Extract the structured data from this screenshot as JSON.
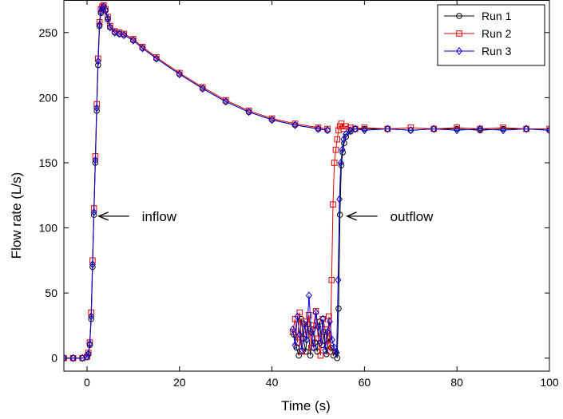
{
  "colors": {
    "run1": "#000000",
    "run2": "#e00000",
    "run3": "#0000d8",
    "axis": "#000000",
    "background": "#ffffff"
  },
  "chart_data": {
    "type": "line",
    "xlabel": "Time (s)",
    "ylabel": "Flow rate (L/s)",
    "xlim": [
      -5,
      100
    ],
    "ylim": [
      -10,
      275
    ],
    "xticks": [
      0,
      20,
      40,
      60,
      80,
      100
    ],
    "yticks": [
      0,
      50,
      100,
      150,
      200,
      250
    ],
    "grid": false,
    "legend_position": "top-right",
    "annotations": [
      {
        "text": "inflow",
        "x": 1.5,
        "y": 109
      },
      {
        "text": "outflow",
        "x": 55.2,
        "y": 109
      }
    ],
    "series": [
      {
        "name": "Run 1",
        "marker": "circle",
        "color_key": "run1",
        "inflow": {
          "x": [
            -5,
            -3,
            -1,
            0,
            0.3,
            0.6,
            0.9,
            1.2,
            1.5,
            1.8,
            2.1,
            2.4,
            2.7,
            3.0,
            3.3,
            3.6,
            4.0,
            4.5,
            5,
            6,
            7,
            8,
            10,
            12,
            15,
            20,
            25,
            30,
            35,
            40,
            45,
            50,
            52
          ],
          "y": [
            0,
            0,
            0,
            1,
            3,
            10,
            30,
            70,
            110,
            150,
            190,
            225,
            255,
            265,
            268,
            270,
            267,
            260,
            254,
            250,
            249,
            248,
            244,
            238,
            230,
            218,
            207,
            197,
            189,
            183,
            179,
            176,
            175
          ]
        },
        "outflow": {
          "x": [
            44.8,
            45.3,
            45.8,
            46.3,
            46.8,
            47.3,
            47.8,
            48.3,
            48.8,
            49.3,
            49.8,
            50.3,
            50.8,
            51.3,
            51.8,
            52.3,
            52.8,
            53.3,
            53.8,
            54.1,
            54.4,
            54.7,
            55.0,
            55.3,
            55.6,
            56.0,
            57,
            58,
            60,
            65,
            70,
            75,
            80,
            85,
            90,
            95,
            100
          ],
          "y": [
            18,
            8,
            2,
            30,
            15,
            5,
            26,
            2,
            22,
            12,
            5,
            28,
            10,
            20,
            3,
            15,
            8,
            2,
            5,
            0,
            38,
            110,
            148,
            158,
            165,
            170,
            174,
            176,
            176,
            176,
            175,
            176,
            176,
            175,
            176,
            176,
            175
          ]
        }
      },
      {
        "name": "Run 2",
        "marker": "square",
        "color_key": "run2",
        "inflow": {
          "x": [
            -5,
            -3,
            -1,
            0,
            0.3,
            0.6,
            0.9,
            1.2,
            1.5,
            1.8,
            2.1,
            2.4,
            2.7,
            3.0,
            3.3,
            3.6,
            4.0,
            4.5,
            5,
            6,
            7,
            8,
            10,
            12,
            15,
            20,
            25,
            30,
            35,
            40,
            45,
            50,
            52
          ],
          "y": [
            0,
            0,
            0,
            1,
            4,
            12,
            35,
            75,
            115,
            155,
            195,
            230,
            258,
            268,
            270,
            271,
            268,
            262,
            255,
            251,
            250,
            249,
            245,
            239,
            231,
            219,
            208,
            198,
            190,
            184,
            180,
            177,
            176
          ]
        },
        "outflow": {
          "x": [
            44.5,
            45.0,
            45.5,
            46.0,
            46.5,
            47.0,
            47.5,
            48.0,
            48.5,
            49.0,
            49.5,
            50.0,
            50.5,
            51.0,
            51.5,
            52.0,
            52.3,
            52.6,
            52.9,
            53.2,
            53.5,
            53.8,
            54.1,
            54.4,
            54.7,
            55.0,
            55.5,
            56,
            57,
            58,
            60,
            65,
            70,
            75,
            80,
            85,
            90,
            95,
            100
          ],
          "y": [
            20,
            30,
            12,
            35,
            5,
            28,
            18,
            33,
            8,
            25,
            36,
            15,
            2,
            30,
            22,
            10,
            32,
            5,
            60,
            118,
            150,
            160,
            168,
            175,
            178,
            180,
            176,
            178,
            177,
            176,
            177,
            176,
            177,
            176,
            177,
            176,
            177,
            176,
            176
          ]
        }
      },
      {
        "name": "Run 3",
        "marker": "diamond",
        "color_key": "run3",
        "inflow": {
          "x": [
            -5,
            -3,
            -1,
            0,
            0.3,
            0.6,
            0.9,
            1.2,
            1.5,
            1.8,
            2.1,
            2.4,
            2.7,
            3.0,
            3.3,
            3.6,
            4.0,
            4.5,
            5,
            6,
            7,
            8,
            10,
            12,
            15,
            20,
            25,
            30,
            35,
            40,
            45,
            50,
            52
          ],
          "y": [
            0,
            0,
            0,
            1,
            3,
            11,
            32,
            72,
            112,
            152,
            192,
            228,
            256,
            266,
            269,
            270,
            267,
            261,
            254,
            250,
            249,
            248,
            244,
            238,
            230,
            218,
            207,
            197,
            189,
            183,
            179,
            176,
            175
          ]
        },
        "outflow": {
          "x": [
            44.5,
            45.0,
            45.5,
            46.0,
            46.5,
            47.0,
            47.5,
            48.0,
            48.5,
            49.0,
            49.5,
            50.0,
            50.5,
            51.0,
            51.5,
            52.0,
            52.5,
            53.0,
            53.5,
            54.0,
            54.3,
            54.6,
            54.9,
            55.2,
            55.5,
            56,
            57,
            58,
            60,
            65,
            70,
            75,
            80,
            85,
            90,
            95,
            100
          ],
          "y": [
            22,
            10,
            32,
            18,
            6,
            26,
            14,
            48,
            20,
            8,
            35,
            24,
            12,
            30,
            6,
            20,
            28,
            14,
            8,
            4,
            60,
            122,
            150,
            160,
            168,
            172,
            175,
            176,
            175,
            176,
            175,
            176,
            175,
            176,
            175,
            176,
            175
          ]
        }
      }
    ]
  }
}
